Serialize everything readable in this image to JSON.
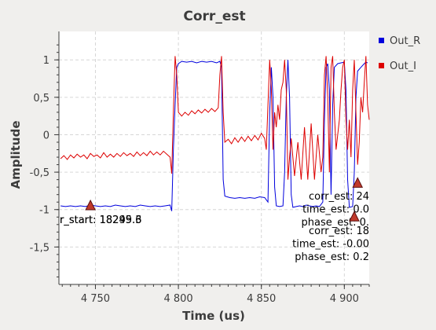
{
  "window": {
    "title": "Corr_est"
  },
  "chart_data": {
    "type": "line",
    "title": "Corr_est",
    "xlabel": "Time (us)",
    "ylabel": "Amplitude",
    "xlim": [
      4728,
      4915
    ],
    "ylim": [
      -2.0,
      1.38
    ],
    "grid": true,
    "legend_position": "right",
    "x_ticks": [
      {
        "value": 4750,
        "label": "4 750"
      },
      {
        "value": 4800,
        "label": "4 800"
      },
      {
        "value": 4850,
        "label": "4 850"
      },
      {
        "value": 4900,
        "label": "4 900"
      }
    ],
    "y_ticks": [
      {
        "value": 1,
        "label": "1"
      },
      {
        "value": 0.5,
        "label": "0,5"
      },
      {
        "value": 0,
        "label": "0"
      },
      {
        "value": -0.5,
        "label": "-0,5"
      },
      {
        "value": -1,
        "label": "-1"
      },
      {
        "value": -1.5,
        "label": "-1,5"
      }
    ],
    "series": [
      {
        "name": "Out_R",
        "color": "#0000dd",
        "points": [
          [
            4729,
            -0.95
          ],
          [
            4732,
            -0.96
          ],
          [
            4735,
            -0.95
          ],
          [
            4738,
            -0.96
          ],
          [
            4741,
            -0.95
          ],
          [
            4744,
            -0.96
          ],
          [
            4747,
            -0.94
          ],
          [
            4750,
            -0.95
          ],
          [
            4753,
            -0.96
          ],
          [
            4756,
            -0.95
          ],
          [
            4759,
            -0.96
          ],
          [
            4762,
            -0.94
          ],
          [
            4765,
            -0.95
          ],
          [
            4768,
            -0.96
          ],
          [
            4771,
            -0.95
          ],
          [
            4774,
            -0.96
          ],
          [
            4777,
            -0.94
          ],
          [
            4780,
            -0.95
          ],
          [
            4783,
            -0.96
          ],
          [
            4786,
            -0.95
          ],
          [
            4789,
            -0.96
          ],
          [
            4792,
            -0.95
          ],
          [
            4795,
            -0.94
          ],
          [
            4796,
            -1.02
          ],
          [
            4797,
            -0.2
          ],
          [
            4798,
            0.4
          ],
          [
            4799,
            0.9
          ],
          [
            4800,
            0.95
          ],
          [
            4802,
            0.98
          ],
          [
            4805,
            0.97
          ],
          [
            4808,
            0.98
          ],
          [
            4811,
            0.96
          ],
          [
            4814,
            0.98
          ],
          [
            4817,
            0.97
          ],
          [
            4820,
            0.98
          ],
          [
            4823,
            0.96
          ],
          [
            4825,
            0.98
          ],
          [
            4826,
            0.9
          ],
          [
            4827,
            -0.6
          ],
          [
            4828,
            -0.82
          ],
          [
            4831,
            -0.84
          ],
          [
            4834,
            -0.85
          ],
          [
            4837,
            -0.84
          ],
          [
            4840,
            -0.85
          ],
          [
            4843,
            -0.84
          ],
          [
            4846,
            -0.85
          ],
          [
            4849,
            -0.83
          ],
          [
            4852,
            -0.84
          ],
          [
            4854,
            -0.9
          ],
          [
            4855,
            0.3
          ],
          [
            4856,
            0.9
          ],
          [
            4857,
            0.5
          ],
          [
            4858,
            -0.7
          ],
          [
            4859,
            -0.95
          ],
          [
            4861,
            -0.96
          ],
          [
            4863,
            -0.95
          ],
          [
            4864,
            -0.5
          ],
          [
            4865,
            0.5
          ],
          [
            4866,
            1.0
          ],
          [
            4867,
            0.5
          ],
          [
            4868,
            -0.8
          ],
          [
            4869,
            -0.97
          ],
          [
            4871,
            -0.96
          ],
          [
            4873,
            -0.95
          ],
          [
            4875,
            -0.96
          ],
          [
            4877,
            -0.94
          ],
          [
            4879,
            -0.95
          ],
          [
            4881,
            -0.96
          ],
          [
            4883,
            -0.95
          ],
          [
            4885,
            -0.96
          ],
          [
            4887,
            -0.9
          ],
          [
            4888,
            0.2
          ],
          [
            4889,
            0.9
          ],
          [
            4890,
            0.95
          ],
          [
            4891,
            0.6
          ],
          [
            4892,
            -0.8
          ],
          [
            4893,
            0.4
          ],
          [
            4894,
            0.9
          ],
          [
            4896,
            0.95
          ],
          [
            4898,
            0.96
          ],
          [
            4900,
            0.97
          ],
          [
            4901,
            0.6
          ],
          [
            4902,
            -0.6
          ],
          [
            4903,
            -0.97
          ],
          [
            4905,
            -0.96
          ],
          [
            4906,
            -0.5
          ],
          [
            4907,
            0.5
          ],
          [
            4908,
            0.85
          ],
          [
            4910,
            0.9
          ],
          [
            4912,
            0.95
          ],
          [
            4913,
            0.97
          ],
          [
            4914,
            0.96
          ]
        ]
      },
      {
        "name": "Out_I",
        "color": "#dd0000",
        "points": [
          [
            4729,
            -0.32
          ],
          [
            4731,
            -0.28
          ],
          [
            4733,
            -0.33
          ],
          [
            4735,
            -0.27
          ],
          [
            4737,
            -0.31
          ],
          [
            4739,
            -0.26
          ],
          [
            4741,
            -0.3
          ],
          [
            4743,
            -0.27
          ],
          [
            4745,
            -0.32
          ],
          [
            4747,
            -0.25
          ],
          [
            4749,
            -0.29
          ],
          [
            4751,
            -0.27
          ],
          [
            4753,
            -0.31
          ],
          [
            4755,
            -0.24
          ],
          [
            4757,
            -0.3
          ],
          [
            4759,
            -0.26
          ],
          [
            4761,
            -0.3
          ],
          [
            4763,
            -0.25
          ],
          [
            4765,
            -0.29
          ],
          [
            4767,
            -0.24
          ],
          [
            4769,
            -0.28
          ],
          [
            4771,
            -0.25
          ],
          [
            4773,
            -0.29
          ],
          [
            4775,
            -0.23
          ],
          [
            4777,
            -0.28
          ],
          [
            4779,
            -0.24
          ],
          [
            4781,
            -0.28
          ],
          [
            4783,
            -0.22
          ],
          [
            4785,
            -0.27
          ],
          [
            4787,
            -0.23
          ],
          [
            4789,
            -0.27
          ],
          [
            4791,
            -0.22
          ],
          [
            4793,
            -0.26
          ],
          [
            4795,
            -0.3
          ],
          [
            4796,
            -0.52
          ],
          [
            4797,
            0.3
          ],
          [
            4798,
            1.05
          ],
          [
            4799,
            0.8
          ],
          [
            4800,
            0.3
          ],
          [
            4802,
            0.25
          ],
          [
            4804,
            0.3
          ],
          [
            4806,
            0.26
          ],
          [
            4808,
            0.32
          ],
          [
            4810,
            0.28
          ],
          [
            4812,
            0.33
          ],
          [
            4814,
            0.29
          ],
          [
            4816,
            0.34
          ],
          [
            4818,
            0.3
          ],
          [
            4820,
            0.35
          ],
          [
            4822,
            0.31
          ],
          [
            4824,
            0.36
          ],
          [
            4825,
            0.8
          ],
          [
            4826,
            1.05
          ],
          [
            4827,
            0.3
          ],
          [
            4828,
            -0.1
          ],
          [
            4830,
            -0.06
          ],
          [
            4832,
            -0.12
          ],
          [
            4834,
            -0.04
          ],
          [
            4836,
            -0.1
          ],
          [
            4838,
            -0.03
          ],
          [
            4840,
            -0.09
          ],
          [
            4842,
            -0.02
          ],
          [
            4844,
            -0.08
          ],
          [
            4846,
            -0.01
          ],
          [
            4848,
            -0.07
          ],
          [
            4850,
            0.02
          ],
          [
            4852,
            -0.05
          ],
          [
            4853,
            -0.2
          ],
          [
            4854,
            0.4
          ],
          [
            4855,
            1.0
          ],
          [
            4856,
            0.6
          ],
          [
            4857,
            -0.2
          ],
          [
            4858,
            0.3
          ],
          [
            4859,
            0.1
          ],
          [
            4860,
            0.4
          ],
          [
            4861,
            0.2
          ],
          [
            4862,
            0.6
          ],
          [
            4863,
            0.7
          ],
          [
            4864,
            1.0
          ],
          [
            4865,
            0.6
          ],
          [
            4866,
            -0.6
          ],
          [
            4867,
            -0.3
          ],
          [
            4868,
            -0.05
          ],
          [
            4870,
            -0.55
          ],
          [
            4872,
            -0.1
          ],
          [
            4874,
            -0.6
          ],
          [
            4876,
            0.1
          ],
          [
            4878,
            -0.6
          ],
          [
            4880,
            0.15
          ],
          [
            4882,
            -0.6
          ],
          [
            4884,
            0.0
          ],
          [
            4886,
            -0.5
          ],
          [
            4887,
            -0.3
          ],
          [
            4888,
            0.8
          ],
          [
            4889,
            1.05
          ],
          [
            4890,
            0.5
          ],
          [
            4891,
            -0.5
          ],
          [
            4892,
            0.9
          ],
          [
            4893,
            1.05
          ],
          [
            4894,
            0.3
          ],
          [
            4895,
            -0.2
          ],
          [
            4897,
            0.2
          ],
          [
            4898,
            0.6
          ],
          [
            4899,
            0.9
          ],
          [
            4900,
            1.0
          ],
          [
            4901,
            0.2
          ],
          [
            4902,
            -0.2
          ],
          [
            4903,
            0.2
          ],
          [
            4904,
            -0.3
          ],
          [
            4905,
            0.6
          ],
          [
            4906,
            1.0
          ],
          [
            4907,
            0.3
          ],
          [
            4908,
            -0.4
          ],
          [
            4909,
            -0.1
          ],
          [
            4910,
            0.5
          ],
          [
            4911,
            0.3
          ],
          [
            4912,
            0.7
          ],
          [
            4913,
            1.05
          ],
          [
            4914,
            0.4
          ],
          [
            4915,
            0.2
          ]
        ]
      }
    ],
    "annotations": [
      {
        "x": 4747,
        "y": -0.95,
        "lines": [
          "r_start: 18249.6",
          "r_start: 18295.3"
        ]
      },
      {
        "x": 4908,
        "y": -0.65,
        "lines": [
          "corr_est: 24",
          "time_est: 0.0",
          "phase_est: 0."
        ]
      },
      {
        "x": 4906,
        "y": -1.1,
        "lines": [
          "corr_est: 18",
          "time_est: -0.00",
          "phase_est: 0.2"
        ]
      }
    ]
  }
}
